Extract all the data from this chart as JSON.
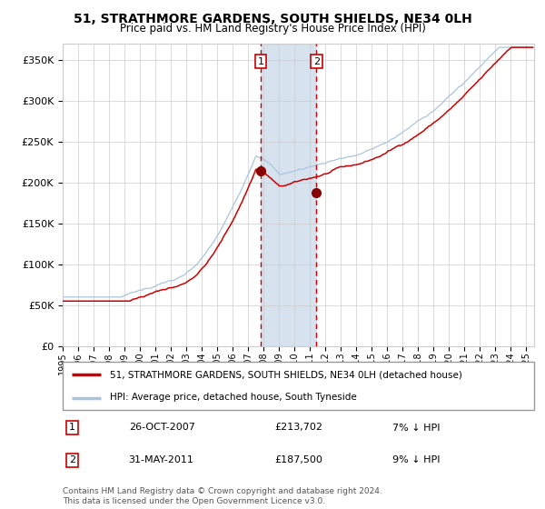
{
  "title": "51, STRATHMORE GARDENS, SOUTH SHIELDS, NE34 0LH",
  "subtitle": "Price paid vs. HM Land Registry's House Price Index (HPI)",
  "legend_line1": "51, STRATHMORE GARDENS, SOUTH SHIELDS, NE34 0LH (detached house)",
  "legend_line2": "HPI: Average price, detached house, South Tyneside",
  "annotation1_date": "26-OCT-2007",
  "annotation1_price": "£213,702",
  "annotation1_hpi": "7% ↓ HPI",
  "annotation2_date": "31-MAY-2011",
  "annotation2_price": "£187,500",
  "annotation2_hpi": "9% ↓ HPI",
  "footer": "Contains HM Land Registry data © Crown copyright and database right 2024.\nThis data is licensed under the Open Government Licence v3.0.",
  "hpi_color": "#aac4dd",
  "price_color": "#cc0000",
  "marker_color": "#880000",
  "vline_color": "#cc0000",
  "shade_color": "#ccdcec",
  "grid_color": "#cccccc",
  "ylim": [
    0,
    370000
  ],
  "yticks": [
    0,
    50000,
    100000,
    150000,
    200000,
    250000,
    300000,
    350000
  ],
  "x_start_year": 1995,
  "x_end_year": 2025,
  "sale1_year": 2007.82,
  "sale2_year": 2011.42,
  "sale1_price": 213702,
  "sale2_price": 187500
}
